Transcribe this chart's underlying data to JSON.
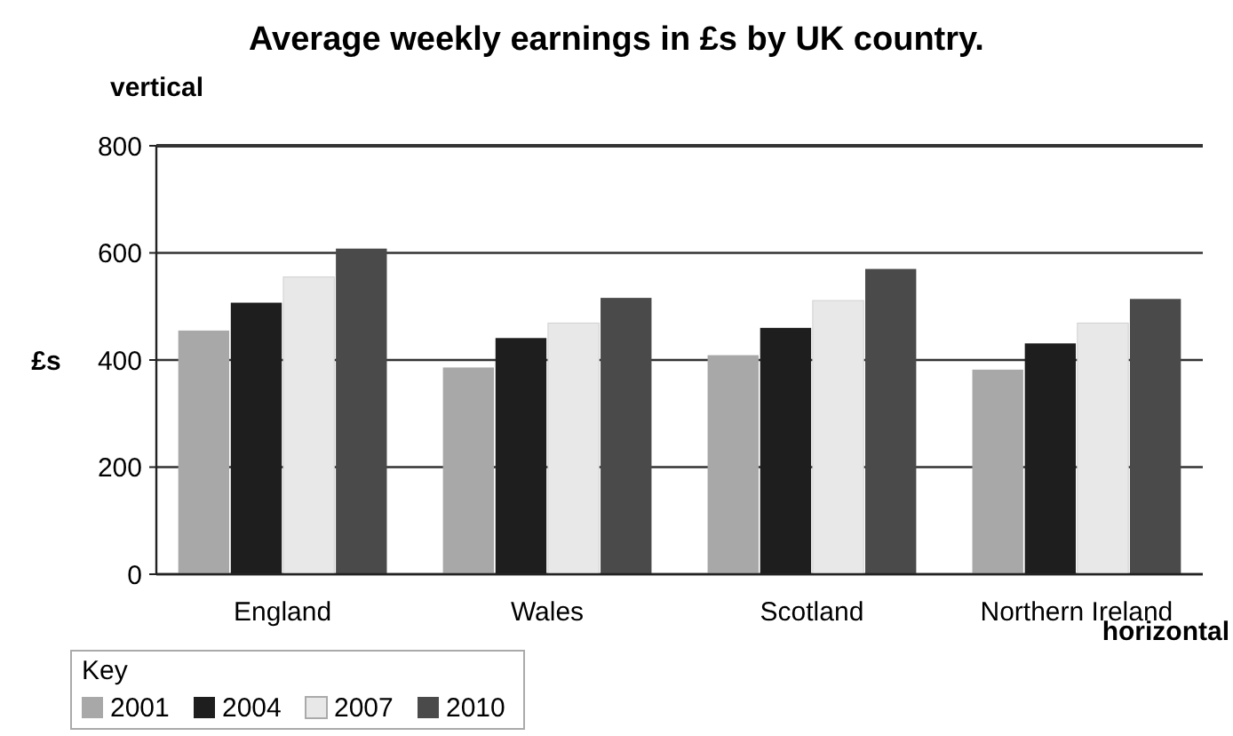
{
  "chart_data": {
    "type": "bar",
    "title": "Average weekly earnings in £s by UK country.",
    "ylabel": "£s",
    "legend_title": "Key",
    "annotations": [
      "vertical",
      "horizontal"
    ],
    "categories": [
      "England",
      "Wales",
      "Scotland",
      "Northern Ireland"
    ],
    "series": [
      {
        "name": "2001",
        "color": "#a8a8a8",
        "values": [
          455,
          386,
          409,
          382
        ]
      },
      {
        "name": "2004",
        "color": "#1e1e1e",
        "values": [
          507,
          441,
          460,
          431
        ]
      },
      {
        "name": "2007",
        "color": "#e8e8e8",
        "values": [
          555,
          469,
          511,
          469
        ]
      },
      {
        "name": "2010",
        "color": "#4a4a4a",
        "values": [
          608,
          516,
          570,
          514
        ]
      }
    ],
    "ylim": [
      0,
      800
    ],
    "yticks": [
      0,
      200,
      400,
      600,
      800
    ],
    "grid": "y",
    "legend": "bottom left"
  }
}
